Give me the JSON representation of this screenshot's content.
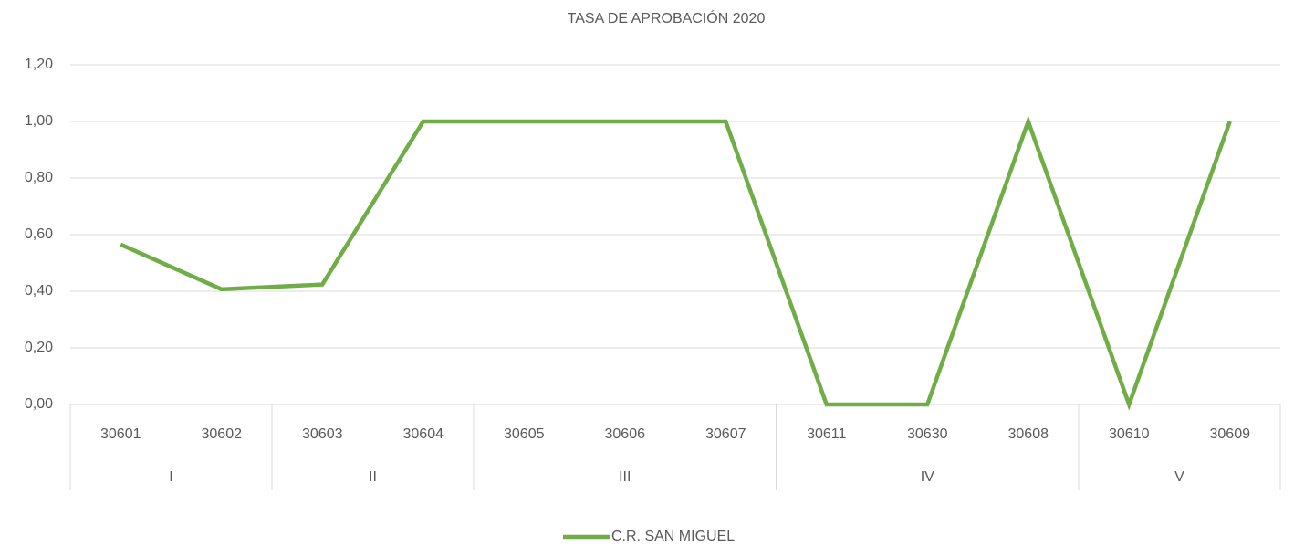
{
  "chart_data": {
    "type": "line",
    "title": "TASA DE APROBACIÓN 2020",
    "categories": [
      "30601",
      "30602",
      "30603",
      "30604",
      "30605",
      "30606",
      "30607",
      "30611",
      "30630",
      "30608",
      "30610",
      "30609"
    ],
    "groups": [
      {
        "name": "I",
        "size": 2
      },
      {
        "name": "II",
        "size": 2
      },
      {
        "name": "III",
        "size": 3
      },
      {
        "name": "IV",
        "size": 3
      },
      {
        "name": "V",
        "size": 2
      }
    ],
    "series": [
      {
        "name": "C.R. SAN MIGUEL",
        "color": "#70ad47",
        "values": [
          0.565,
          0.407,
          0.424,
          1,
          1,
          1,
          1,
          0,
          0,
          1,
          0,
          1
        ]
      }
    ],
    "ylim": [
      0,
      1.2
    ],
    "yticks": [
      {
        "value": 0,
        "label": "0,00"
      },
      {
        "value": 0.2,
        "label": "0,20"
      },
      {
        "value": 0.4,
        "label": "0,40"
      },
      {
        "value": 0.6,
        "label": "0,60"
      },
      {
        "value": 0.8,
        "label": "0,80"
      },
      {
        "value": 1,
        "label": "1,00"
      },
      {
        "value": 1.2,
        "label": "1,20"
      }
    ],
    "grid": true,
    "legend": "bottom"
  }
}
